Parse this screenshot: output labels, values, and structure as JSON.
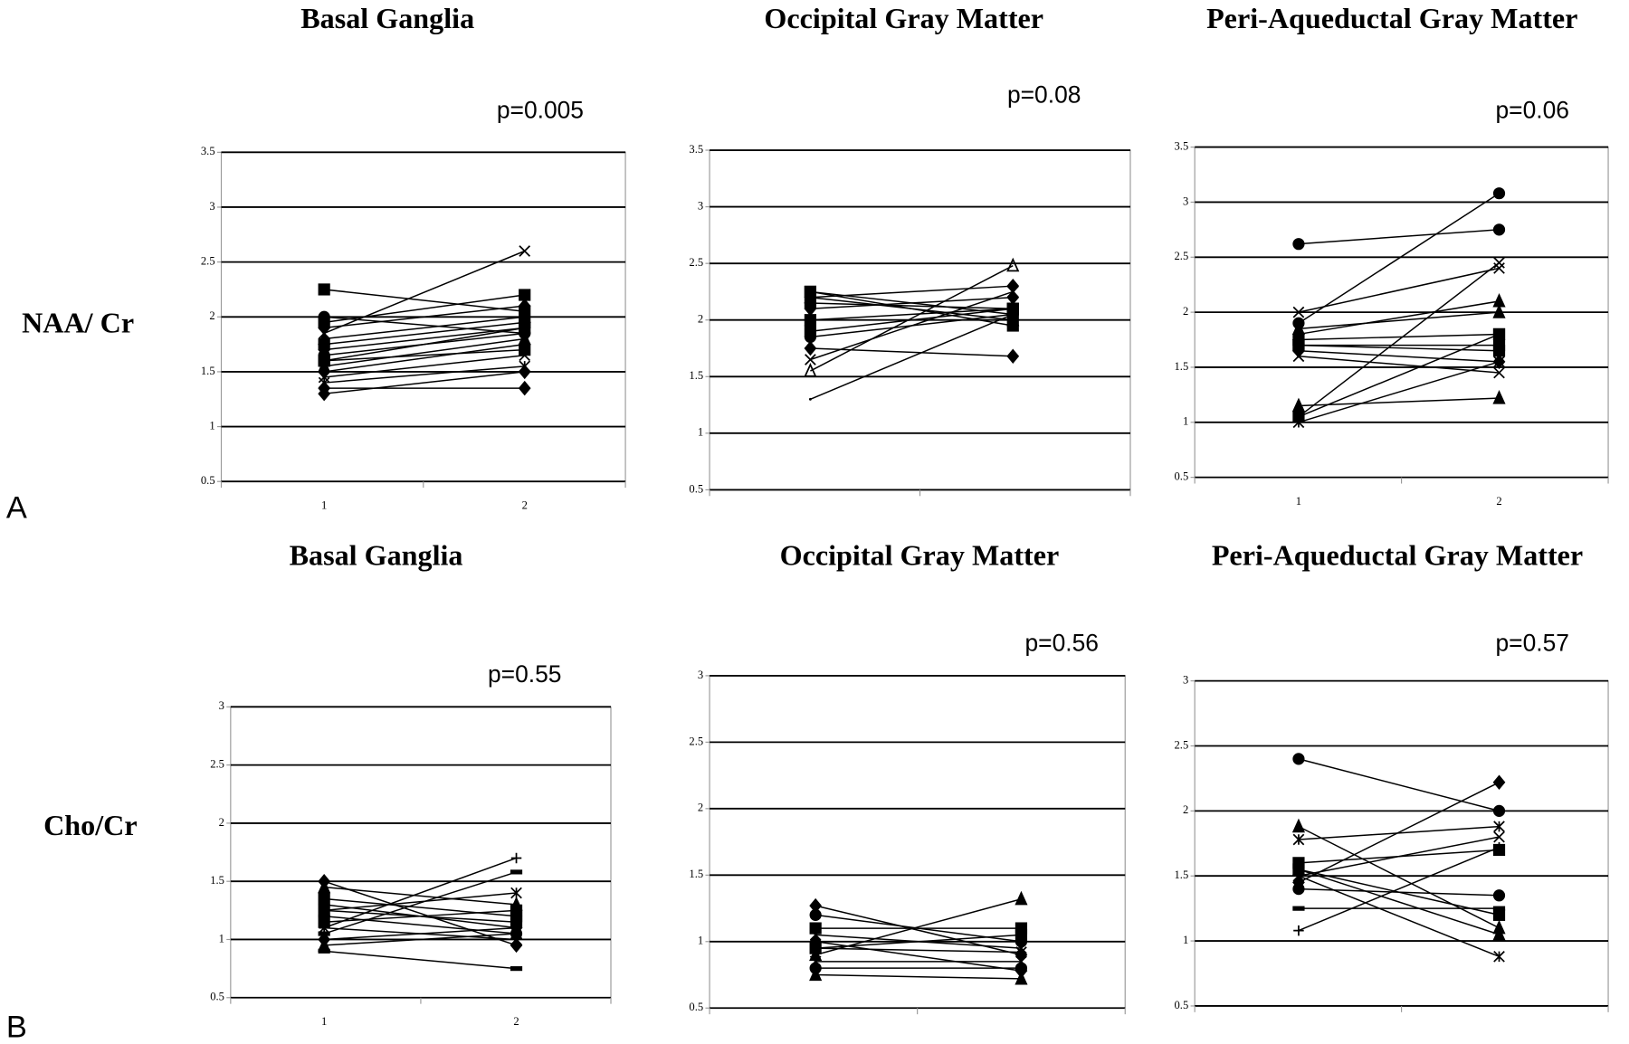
{
  "figure": {
    "panel_labels": [
      "A",
      "B"
    ],
    "row_labels": [
      "NAA/ Cr",
      "Cho/Cr"
    ]
  },
  "chart_data": [
    {
      "type": "line",
      "title": "Basal Ganglia",
      "annotation": "p=0.005",
      "color": "#000000",
      "grid": true,
      "categories": [
        "1",
        "2"
      ],
      "ylim": [
        0.5,
        3.5
      ],
      "yticks": [
        0.5,
        1,
        1.5,
        2,
        2.5,
        3,
        3.5
      ],
      "series": [
        {
          "marker": "square",
          "values": [
            2.25,
            2.05
          ]
        },
        {
          "marker": "x",
          "values": [
            1.85,
            2.6
          ]
        },
        {
          "marker": "square",
          "values": [
            1.95,
            2.2
          ]
        },
        {
          "marker": "diamond",
          "values": [
            1.9,
            2.1
          ]
        },
        {
          "marker": "triangle",
          "values": [
            1.8,
            2.0
          ]
        },
        {
          "marker": "square",
          "values": [
            1.75,
            1.95
          ]
        },
        {
          "marker": "diamond",
          "values": [
            1.7,
            1.9
          ]
        },
        {
          "marker": "circle",
          "values": [
            1.65,
            1.85
          ]
        },
        {
          "marker": "square",
          "values": [
            1.6,
            1.9
          ]
        },
        {
          "marker": "triangle",
          "values": [
            1.55,
            1.8
          ]
        },
        {
          "marker": "diamond",
          "values": [
            1.5,
            1.75
          ]
        },
        {
          "marker": "x",
          "values": [
            1.45,
            1.65
          ]
        },
        {
          "marker": "star",
          "values": [
            1.4,
            1.55
          ]
        },
        {
          "marker": "diamond",
          "values": [
            1.35,
            1.35
          ]
        },
        {
          "marker": "diamond",
          "values": [
            1.3,
            1.5
          ]
        },
        {
          "marker": "circle",
          "values": [
            2.0,
            1.85
          ]
        },
        {
          "marker": "square",
          "values": [
            1.6,
            1.7
          ]
        }
      ]
    },
    {
      "type": "line",
      "title": "Occipital Gray Matter",
      "annotation": "p=0.08",
      "color": "#000000",
      "grid": true,
      "categories": [
        null,
        null
      ],
      "ylim": [
        0.5,
        3.5
      ],
      "yticks": [
        0.5,
        1,
        1.5,
        2,
        2.5,
        3,
        3.5
      ],
      "series": [
        {
          "marker": "square",
          "values": [
            2.25,
            2.05
          ]
        },
        {
          "marker": "diamond",
          "values": [
            2.2,
            2.3
          ]
        },
        {
          "marker": "square",
          "values": [
            2.15,
            2.1
          ]
        },
        {
          "marker": "diamond",
          "values": [
            2.1,
            2.2
          ]
        },
        {
          "marker": "square",
          "values": [
            2.25,
            1.95
          ]
        },
        {
          "marker": "square",
          "values": [
            1.9,
            2.1
          ]
        },
        {
          "marker": "circle",
          "values": [
            1.85,
            2.05
          ]
        },
        {
          "marker": "diamond",
          "values": [
            1.75,
            1.68
          ]
        },
        {
          "marker": "x",
          "values": [
            1.65,
            2.25
          ]
        },
        {
          "marker": "triangle-open",
          "values": [
            1.55,
            2.48
          ]
        },
        {
          "marker": "none",
          "values": [
            1.3,
            2.05
          ]
        },
        {
          "marker": "triangle",
          "values": [
            2.2,
            2.0
          ]
        },
        {
          "marker": "square",
          "values": [
            2.0,
            2.1
          ]
        }
      ]
    },
    {
      "type": "line",
      "title": "Peri-Aqueductal Gray Matter",
      "annotation": "p=0.06",
      "color": "#000000",
      "grid": true,
      "categories": [
        "1",
        "2"
      ],
      "ylim": [
        0.5,
        3.5
      ],
      "yticks": [
        0.5,
        1,
        1.5,
        2,
        2.5,
        3,
        3.5
      ],
      "series": [
        {
          "marker": "circle",
          "values": [
            2.62,
            2.75
          ]
        },
        {
          "marker": "x",
          "values": [
            2.0,
            2.4
          ]
        },
        {
          "marker": "circle",
          "values": [
            1.9,
            3.08
          ]
        },
        {
          "marker": "triangle",
          "values": [
            1.8,
            2.1
          ]
        },
        {
          "marker": "square",
          "values": [
            1.75,
            1.8
          ]
        },
        {
          "marker": "square",
          "values": [
            1.7,
            1.7
          ]
        },
        {
          "marker": "diamond",
          "values": [
            1.65,
            1.55
          ]
        },
        {
          "marker": "x",
          "values": [
            1.6,
            1.45
          ]
        },
        {
          "marker": "square",
          "values": [
            1.7,
            1.65
          ]
        },
        {
          "marker": "triangle",
          "values": [
            1.15,
            1.22
          ]
        },
        {
          "marker": "square",
          "values": [
            1.05,
            1.8
          ]
        },
        {
          "marker": "x",
          "values": [
            1.05,
            2.45
          ]
        },
        {
          "marker": "star",
          "values": [
            1.0,
            1.55
          ]
        },
        {
          "marker": "triangle",
          "values": [
            1.85,
            2.0
          ]
        }
      ]
    },
    {
      "type": "line",
      "title": "Basal Ganglia",
      "annotation": "p=0.55",
      "color": "#000000",
      "grid": true,
      "categories": [
        "1",
        "2"
      ],
      "ylim": [
        0.5,
        3
      ],
      "yticks": [
        0.5,
        1,
        1.5,
        2,
        2.5,
        3
      ],
      "series": [
        {
          "marker": "diamond",
          "values": [
            1.5,
            0.95
          ]
        },
        {
          "marker": "triangle",
          "values": [
            1.45,
            1.3
          ]
        },
        {
          "marker": "square",
          "values": [
            1.35,
            1.2
          ]
        },
        {
          "marker": "x",
          "values": [
            1.3,
            1.1
          ]
        },
        {
          "marker": "star",
          "values": [
            1.25,
            1.4
          ]
        },
        {
          "marker": "circle",
          "values": [
            1.2,
            1.05
          ]
        },
        {
          "marker": "square",
          "values": [
            1.15,
            1.25
          ]
        },
        {
          "marker": "plus",
          "values": [
            1.1,
            1.7
          ]
        },
        {
          "marker": "dash",
          "values": [
            1.05,
            1.58
          ]
        },
        {
          "marker": "diamond",
          "values": [
            1.0,
            1.1
          ]
        },
        {
          "marker": "triangle",
          "values": [
            0.95,
            1.05
          ]
        },
        {
          "marker": "dash",
          "values": [
            0.9,
            0.75
          ]
        },
        {
          "marker": "square",
          "values": [
            1.25,
            1.15
          ]
        },
        {
          "marker": "x",
          "values": [
            1.1,
            1.0
          ]
        }
      ]
    },
    {
      "type": "line",
      "title": "Occipital Gray Matter",
      "annotation": "p=0.56",
      "color": "#000000",
      "grid": true,
      "categories": [
        null,
        null
      ],
      "ylim": [
        0.5,
        3
      ],
      "yticks": [
        0.5,
        1,
        1.5,
        2,
        2.5,
        3
      ],
      "series": [
        {
          "marker": "diamond",
          "values": [
            1.27,
            0.9
          ]
        },
        {
          "marker": "circle",
          "values": [
            1.2,
            1.0
          ]
        },
        {
          "marker": "square",
          "values": [
            1.1,
            1.1
          ]
        },
        {
          "marker": "x",
          "values": [
            1.05,
            0.95
          ]
        },
        {
          "marker": "diamond",
          "values": [
            1.0,
            1.0
          ]
        },
        {
          "marker": "square",
          "values": [
            0.95,
            1.05
          ]
        },
        {
          "marker": "triangle",
          "values": [
            0.9,
            1.32
          ]
        },
        {
          "marker": "star",
          "values": [
            0.85,
            0.85
          ]
        },
        {
          "marker": "circle",
          "values": [
            0.8,
            0.8
          ]
        },
        {
          "marker": "triangle",
          "values": [
            0.75,
            0.72
          ]
        },
        {
          "marker": "diamond",
          "values": [
            1.0,
            0.78
          ]
        },
        {
          "marker": "x",
          "values": [
            0.95,
            0.92
          ]
        }
      ]
    },
    {
      "type": "line",
      "title": "Peri-Aqueductal Gray Matter",
      "annotation": "p=0.57",
      "color": "#000000",
      "grid": true,
      "categories": [
        null,
        null
      ],
      "ylim": [
        0.5,
        3
      ],
      "yticks": [
        0.5,
        1,
        1.5,
        2,
        2.5,
        3
      ],
      "series": [
        {
          "marker": "circle",
          "values": [
            2.4,
            2.0
          ]
        },
        {
          "marker": "triangle",
          "values": [
            1.88,
            1.1
          ]
        },
        {
          "marker": "star",
          "values": [
            1.78,
            1.88
          ]
        },
        {
          "marker": "square",
          "values": [
            1.6,
            1.7
          ]
        },
        {
          "marker": "square",
          "values": [
            1.55,
            1.2
          ]
        },
        {
          "marker": "x",
          "values": [
            1.5,
            1.8
          ]
        },
        {
          "marker": "diamond",
          "values": [
            1.45,
            2.22
          ]
        },
        {
          "marker": "circle",
          "values": [
            1.4,
            1.35
          ]
        },
        {
          "marker": "dash",
          "values": [
            1.25,
            1.25
          ]
        },
        {
          "marker": "plus",
          "values": [
            1.08,
            1.72
          ]
        },
        {
          "marker": "star",
          "values": [
            1.5,
            0.88
          ]
        },
        {
          "marker": "triangle",
          "values": [
            1.55,
            1.05
          ]
        }
      ]
    }
  ]
}
